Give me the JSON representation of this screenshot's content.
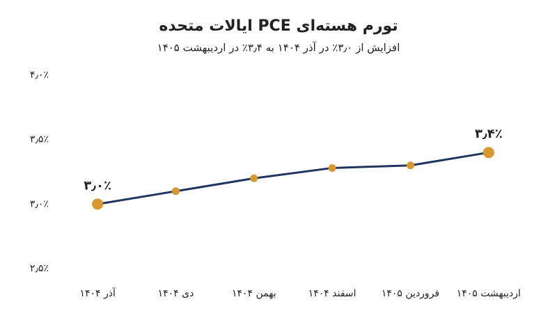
{
  "chart_data": {
    "type": "line",
    "title": "تورم هسته‌ای PCE ایالات متحده",
    "subtitle": "افزایش از ۳٫۰٪ در آذر ۱۴۰۴ به ۳٫۴٪ در اردیبهشت ۱۴۰۵",
    "categories": [
      "آذر ۱۴۰۴",
      "دی ۱۴۰۴",
      "بهمن ۱۴۰۴",
      "اسفند ۱۴۰۴",
      "فروردین ۱۴۰۵",
      "اردیبهشت ۱۴۰۵"
    ],
    "values": [
      3.0,
      3.1,
      3.2,
      3.28,
      3.3,
      3.4
    ],
    "value_labels": [
      "۳٫۰٪",
      null,
      null,
      null,
      null,
      "۳٫۴٪"
    ],
    "color": "#1f3461",
    "marker_color": "#d9982e",
    "ylim": [
      2.5,
      4.0
    ],
    "yticks": [
      {
        "value": 2.5,
        "label": "۲٫۵٪"
      },
      {
        "value": 3.0,
        "label": "۳٫۰٪"
      },
      {
        "value": 3.5,
        "label": "۳٫۵٪"
      },
      {
        "value": 4.0,
        "label": "۴٫۰٪"
      }
    ],
    "grid": false
  }
}
